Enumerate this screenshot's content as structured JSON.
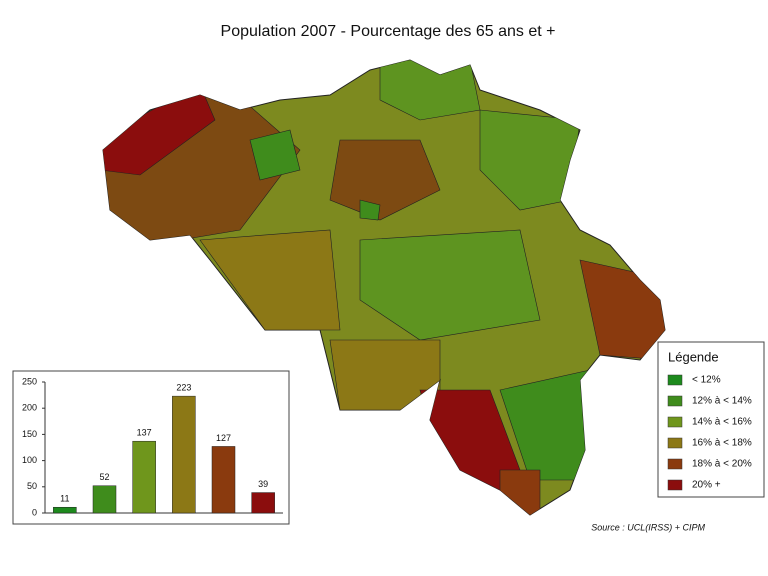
{
  "title": "Population 2007 - Pourcentage des 65 ans et +",
  "legend": {
    "title": "Légende",
    "items": [
      {
        "label": "< 12%",
        "color": "#1d8a1d"
      },
      {
        "label": "12% à < 14%",
        "color": "#3f8c1c"
      },
      {
        "label": "14% à < 16%",
        "color": "#6f961c"
      },
      {
        "label": "16% à < 18%",
        "color": "#8c7816"
      },
      {
        "label": "18% à < 20%",
        "color": "#8a3a0e"
      },
      {
        "label": "20% +",
        "color": "#8b0d0d"
      }
    ]
  },
  "source": "Source : UCL(IRSS) + CIPM",
  "chart_data": {
    "type": "bar",
    "values": [
      11,
      52,
      137,
      223,
      127,
      39
    ],
    "colors": [
      "#1d8a1d",
      "#3f8c1c",
      "#6f961c",
      "#8c7816",
      "#8a3a0e",
      "#8b0d0d"
    ],
    "ylim": [
      0,
      250
    ],
    "yticks": [
      0,
      50,
      100,
      150,
      200,
      250
    ]
  }
}
